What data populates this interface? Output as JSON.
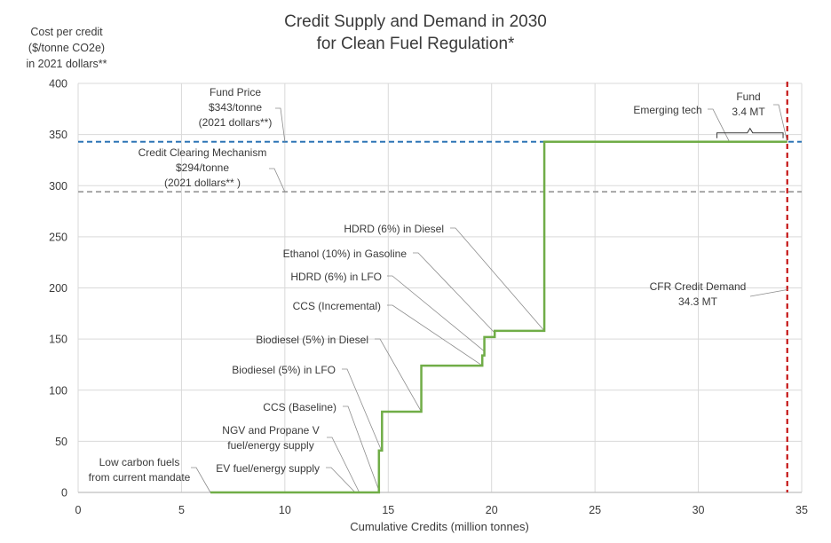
{
  "chart_data": {
    "type": "line",
    "subtype": "step",
    "title": [
      "Credit Supply and Demand in 2030",
      "for Clean Fuel Regulation*"
    ],
    "ylabel": [
      "Cost per credit",
      "($/tonne CO2e)",
      "in 2021 dollars**"
    ],
    "xlabel": "Cumulative Credits (million tonnes)",
    "xlim": [
      0,
      35
    ],
    "ylim": [
      0,
      400
    ],
    "xticks": [
      0,
      5,
      10,
      15,
      20,
      25,
      30,
      35
    ],
    "yticks": [
      0,
      50,
      100,
      150,
      200,
      250,
      300,
      350,
      400
    ],
    "grid": true,
    "supply_curve": {
      "name": "Credit supply",
      "color": "#70ad47",
      "points": [
        [
          6.4,
          0
        ],
        [
          14.55,
          0
        ],
        [
          14.55,
          41
        ],
        [
          14.7,
          41
        ],
        [
          14.7,
          79
        ],
        [
          16.6,
          79
        ],
        [
          16.6,
          124
        ],
        [
          19.55,
          124
        ],
        [
          19.55,
          134
        ],
        [
          19.65,
          134
        ],
        [
          19.65,
          152
        ],
        [
          20.15,
          152
        ],
        [
          20.15,
          158
        ],
        [
          22.55,
          158
        ],
        [
          22.55,
          343
        ],
        [
          34.3,
          343
        ]
      ]
    },
    "reference_lines": [
      {
        "name": "Fund Price",
        "orientation": "horizontal",
        "value": 343,
        "color": "#2e75b6",
        "style": "dashed"
      },
      {
        "name": "Credit Clearing Mechanism",
        "orientation": "horizontal",
        "value": 294,
        "color": "#a6a6a6",
        "style": "dashed"
      },
      {
        "name": "CFR Credit Demand",
        "orientation": "vertical",
        "value": 34.3,
        "color": "#c00000",
        "style": "dashed"
      }
    ],
    "annotations": [
      {
        "id": "fund-price",
        "lines": [
          "Fund Price",
          "$343/tonne",
          "(2021 dollars**)"
        ],
        "target": [
          10,
          343
        ]
      },
      {
        "id": "ccm",
        "lines": [
          "Credit Clearing Mechanism",
          "$294/tonne",
          "(2021 dollars** )"
        ],
        "target": [
          10,
          294
        ]
      },
      {
        "id": "emerging-tech",
        "lines": [
          "Emerging tech"
        ],
        "target": [
          31.5,
          343
        ]
      },
      {
        "id": "fund",
        "lines": [
          "Fund",
          "3.4 MT"
        ],
        "target": [
          34.3,
          343
        ]
      },
      {
        "id": "cfr-demand",
        "lines": [
          "CFR Credit Demand",
          "34.3 MT"
        ],
        "target": [
          34.3,
          200
        ]
      },
      {
        "id": "hdrd-diesel",
        "lines": [
          "HDRD (6%) in Diesel"
        ],
        "target": [
          22.55,
          158
        ]
      },
      {
        "id": "ethanol",
        "lines": [
          "Ethanol (10%) in Gasoline"
        ],
        "target": [
          20.2,
          155
        ]
      },
      {
        "id": "hdrd-lfo",
        "lines": [
          "HDRD (6%) in LFO"
        ],
        "target": [
          19.65,
          138
        ]
      },
      {
        "id": "ccs-incremental",
        "lines": [
          "CCS (Incremental)"
        ],
        "target": [
          19.55,
          124
        ]
      },
      {
        "id": "biodiesel-diesel",
        "lines": [
          "Biodiesel (5%) in Diesel"
        ],
        "target": [
          16.6,
          79
        ]
      },
      {
        "id": "biodiesel-lfo",
        "lines": [
          "Biodiesel (5%) in LFO"
        ],
        "target": [
          14.65,
          42
        ]
      },
      {
        "id": "ccs-baseline",
        "lines": [
          "CCS (Baseline)"
        ],
        "target": [
          14.55,
          2
        ]
      },
      {
        "id": "ngv-propane",
        "lines": [
          "NGV and Propane V",
          "fuel/energy supply"
        ],
        "target": [
          13.6,
          0
        ]
      },
      {
        "id": "ev",
        "lines": [
          "EV fuel/energy supply"
        ],
        "target": [
          13.4,
          0
        ]
      },
      {
        "id": "low-carbon",
        "lines": [
          "Low carbon fuels",
          "from current mandate"
        ],
        "target": [
          6.4,
          0
        ]
      }
    ]
  }
}
